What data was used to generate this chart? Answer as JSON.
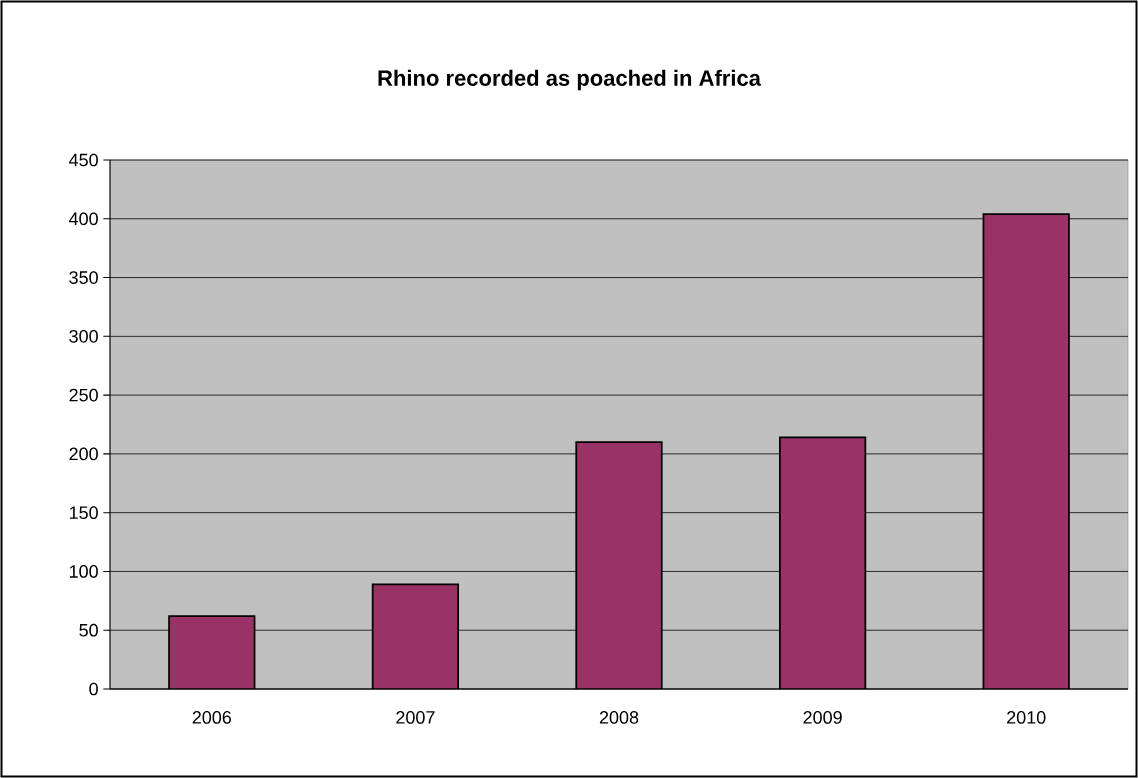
{
  "chart_data": {
    "type": "bar",
    "title": "Rhino recorded as poached in Africa",
    "categories": [
      "2006",
      "2007",
      "2008",
      "2009",
      "2010"
    ],
    "values": [
      62,
      89,
      210,
      214,
      404
    ],
    "color": "#993366",
    "ylim": [
      0,
      450
    ],
    "yticks": [
      0,
      50,
      100,
      150,
      200,
      250,
      300,
      350,
      400,
      450
    ],
    "grid": "y"
  }
}
